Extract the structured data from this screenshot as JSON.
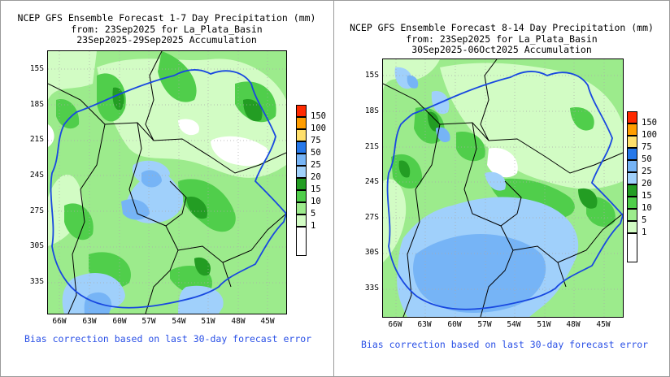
{
  "colors": {
    "c1": "#ffffff",
    "c5": "#d2fcc4",
    "c10": "#9ceb8c",
    "c15": "#50ce4b",
    "c20": "#239d23",
    "c25": "#a0d0fb",
    "c50": "#76b4f6",
    "c75": "#2678ea",
    "c100": "#ffdf6b",
    "c150": "#ff9d00",
    "c200": "#ff2a00",
    "border": "#1848e0"
  },
  "legend": {
    "values": [
      "150",
      "100",
      "75",
      "50",
      "25",
      "20",
      "15",
      "10",
      "5",
      "1"
    ]
  },
  "left": {
    "title_line1": "NCEP GFS Ensemble Forecast 1-7 Day Precipitation (mm)",
    "title_line2": "from: 23Sep2025   for La_Plata_Basin",
    "title_line3": "23Sep2025-29Sep2025 Accumulation",
    "lat_labels": [
      "15S",
      "18S",
      "21S",
      "24S",
      "27S",
      "30S",
      "33S"
    ],
    "lon_labels": [
      "66W",
      "63W",
      "60W",
      "57W",
      "54W",
      "51W",
      "48W",
      "45W"
    ],
    "note": "Bias correction based on last 30-day forecast error"
  },
  "right": {
    "title_line1": "NCEP GFS Ensemble Forecast 8-14 Day Precipitation (mm)",
    "title_line2": "from: 23Sep2025   for La_Plata_Basin",
    "title_line3": "30Sep2025-06Oct2025 Accumulation",
    "lat_labels": [
      "15S",
      "18S",
      "21S",
      "24S",
      "27S",
      "30S",
      "33S"
    ],
    "lon_labels": [
      "66W",
      "63W",
      "60W",
      "57W",
      "54W",
      "51W",
      "48W",
      "45W"
    ],
    "note": "Bias correction based on last 30-day forecast error"
  }
}
